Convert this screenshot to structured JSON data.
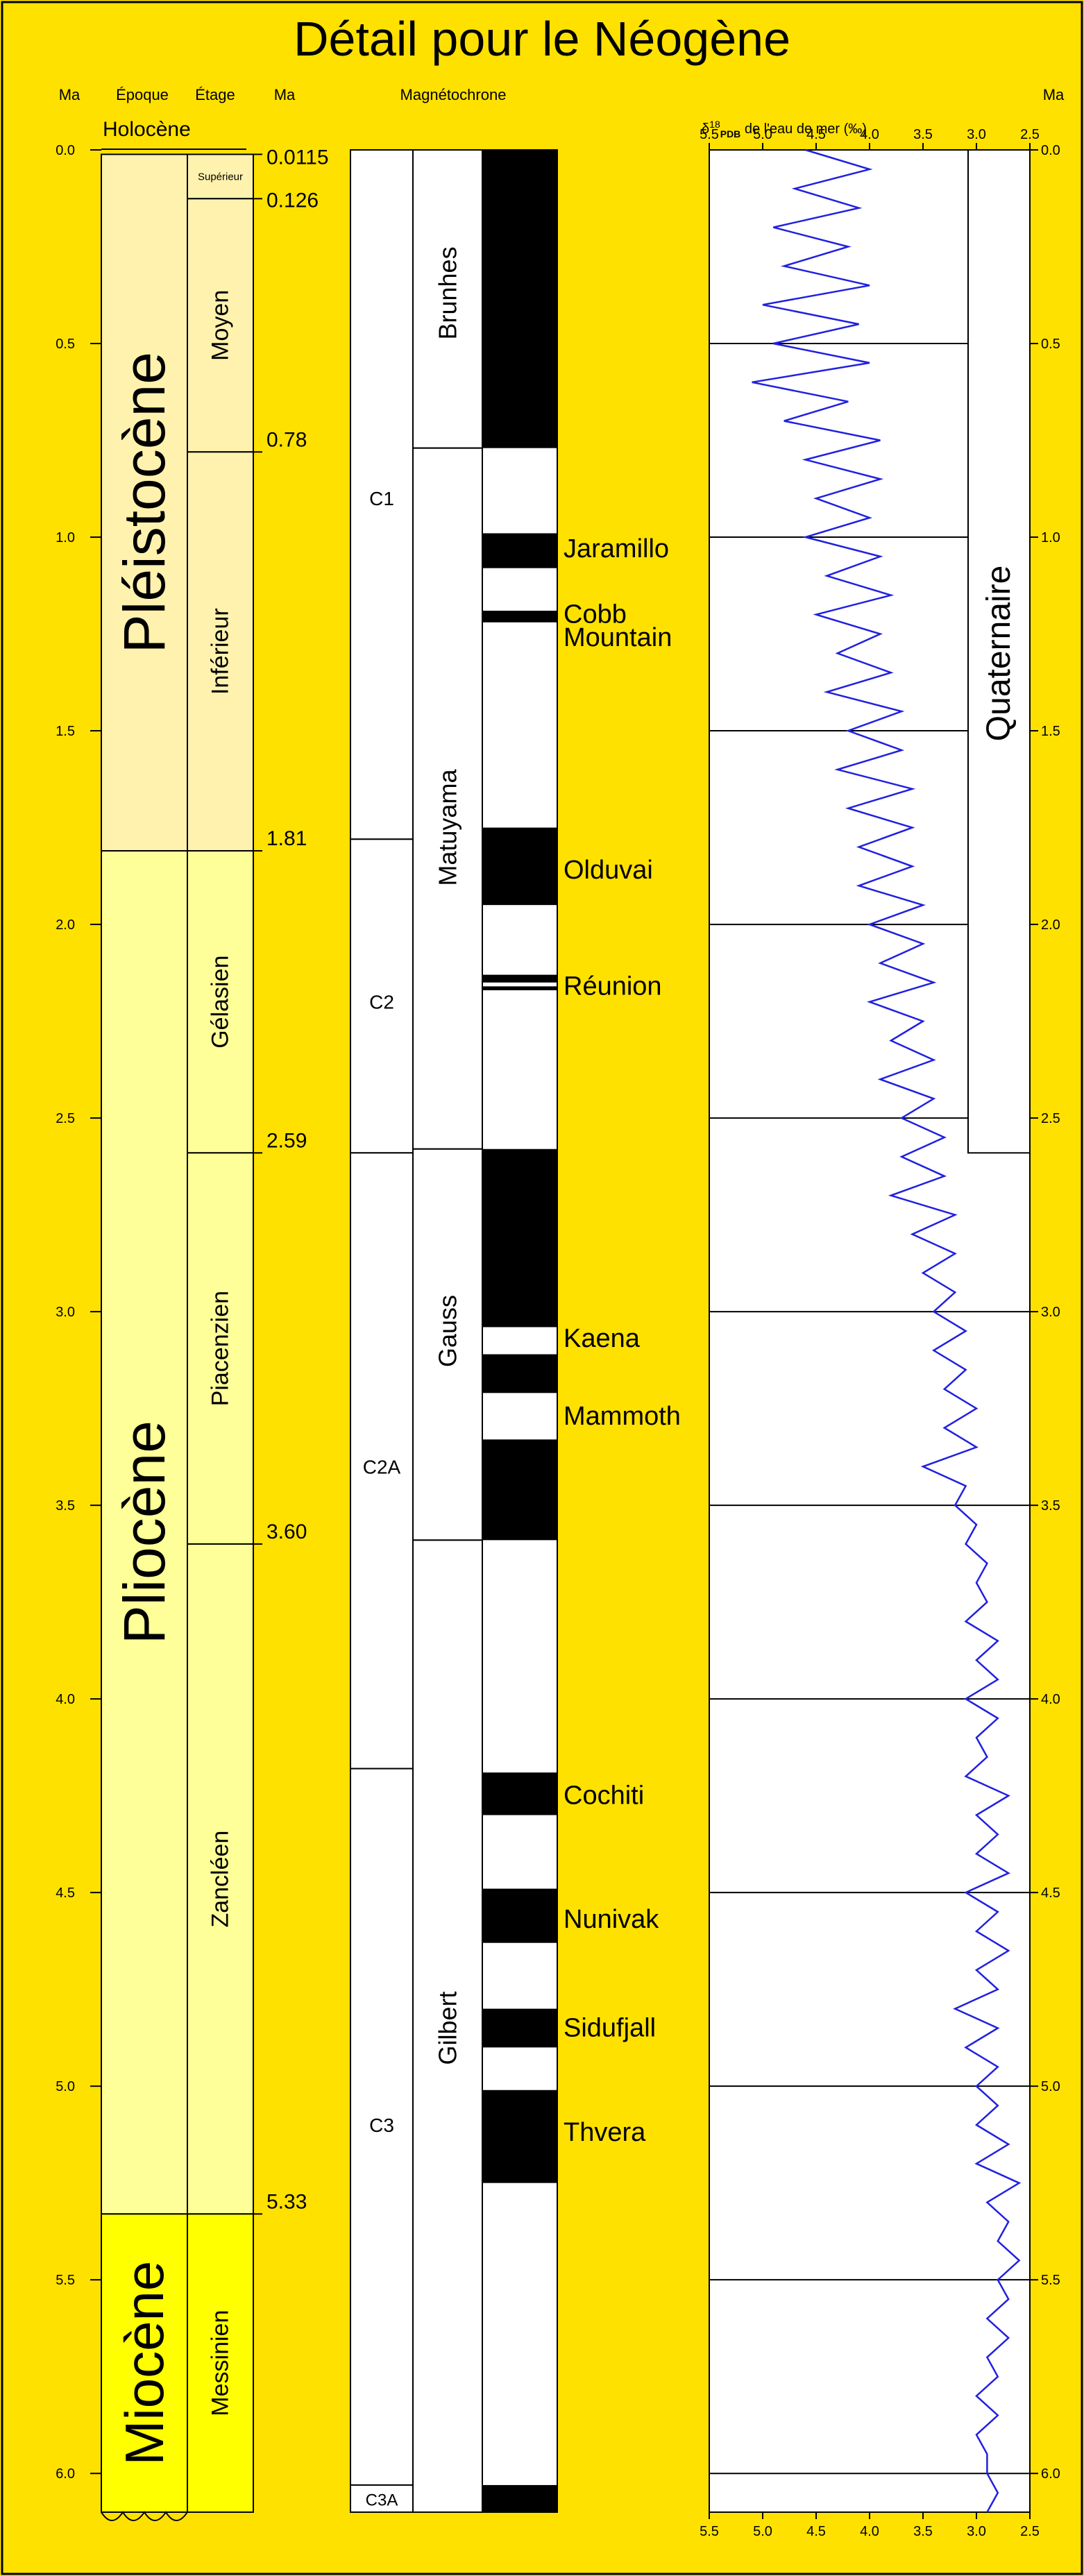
{
  "title": "Détail pour le Néogène",
  "colors": {
    "background": "#FFE100",
    "pleistocene": "#FFF2AE",
    "pliocene": "#FFFF99",
    "miocene": "#FFFF00",
    "normal_polarity": "#000000",
    "reverse_polarity": "#FFFFFF",
    "isotope_curve": "#2020E0"
  },
  "headers": {
    "ma_left": "Ma",
    "epoch": "Époque",
    "stage": "Étage",
    "ma_boundaries": "Ma",
    "magnetochron": "Magnétochrone",
    "isotope_prefix": "δ",
    "isotope_sup": "18",
    "isotope_sub": "PDB",
    "isotope_suffix": " de l'eau de mer (‰)",
    "ma_right": "Ma"
  },
  "time_axis": {
    "min": 0.0,
    "max": 6.1,
    "ticks": [
      "0.0",
      "0.5",
      "1.0",
      "1.5",
      "2.0",
      "2.5",
      "3.0",
      "3.5",
      "4.0",
      "4.5",
      "5.0",
      "5.5",
      "6.0"
    ]
  },
  "epochs": [
    {
      "name": "Holocène",
      "start": 0.0,
      "end": 0.0115,
      "color": "#FFF8D0"
    },
    {
      "name": "Pléistocène",
      "start": 0.0115,
      "end": 1.81,
      "color": "#FFF2AE"
    },
    {
      "name": "Pliocène",
      "start": 1.81,
      "end": 5.33,
      "color": "#FFFF99"
    },
    {
      "name": "Miocène",
      "start": 5.33,
      "end": 6.1,
      "color": "#FFFF00"
    }
  ],
  "stages": [
    {
      "name": "Supérieur",
      "start": 0.0115,
      "end": 0.126,
      "color": "#FFF2AE"
    },
    {
      "name": "Moyen",
      "start": 0.126,
      "end": 0.78,
      "color": "#FFF2AE"
    },
    {
      "name": "Inférieur",
      "start": 0.78,
      "end": 1.81,
      "color": "#FFF2AE"
    },
    {
      "name": "Gélasien",
      "start": 1.81,
      "end": 2.59,
      "color": "#FFFF99"
    },
    {
      "name": "Piacenzien",
      "start": 2.59,
      "end": 3.6,
      "color": "#FFFF99"
    },
    {
      "name": "Zancléen",
      "start": 3.6,
      "end": 5.33,
      "color": "#FFFF99"
    },
    {
      "name": "Messinien",
      "start": 5.33,
      "end": 6.1,
      "color": "#FFFF00"
    }
  ],
  "boundary_labels": [
    {
      "label": "0.0115",
      "age": 0.0115
    },
    {
      "label": "0.126",
      "age": 0.126
    },
    {
      "label": "0.78",
      "age": 0.78
    },
    {
      "label": "1.81",
      "age": 1.81
    },
    {
      "label": "2.59",
      "age": 2.59
    },
    {
      "label": "3.60",
      "age": 3.6
    },
    {
      "label": "5.33",
      "age": 5.33
    }
  ],
  "chrons": [
    {
      "name": "C1",
      "start": 0.0,
      "end": 1.78
    },
    {
      "name": "C2",
      "start": 1.78,
      "end": 2.59
    },
    {
      "name": "C2A",
      "start": 2.59,
      "end": 4.18
    },
    {
      "name": "C3",
      "start": 4.18,
      "end": 6.03
    },
    {
      "name": "C3A",
      "start": 6.03,
      "end": 6.1
    }
  ],
  "polarity_chrons": [
    {
      "name": "Brunhes",
      "start": 0.0,
      "end": 0.77
    },
    {
      "name": "Matuyama",
      "start": 0.77,
      "end": 2.58
    },
    {
      "name": "Gauss",
      "start": 2.58,
      "end": 3.59
    },
    {
      "name": "Gilbert",
      "start": 3.59,
      "end": 6.1
    }
  ],
  "normal_intervals": [
    [
      0.0,
      0.77
    ],
    [
      0.99,
      1.08
    ],
    [
      1.19,
      1.22
    ],
    [
      1.75,
      1.95
    ],
    [
      2.13,
      2.15
    ],
    [
      2.16,
      2.17
    ],
    [
      2.58,
      3.04
    ],
    [
      3.11,
      3.21
    ],
    [
      3.33,
      3.59
    ],
    [
      4.19,
      4.3
    ],
    [
      4.49,
      4.63
    ],
    [
      4.8,
      4.9
    ],
    [
      5.01,
      5.25
    ],
    [
      6.03,
      6.1
    ]
  ],
  "subchron_labels": [
    {
      "name": "Jaramillo",
      "age": 1.03
    },
    {
      "name": "Cobb",
      "age": 1.2
    },
    {
      "name": "Mountain",
      "age": 1.26
    },
    {
      "name": "Olduvai",
      "age": 1.86
    },
    {
      "name": "Réunion",
      "age": 2.16
    },
    {
      "name": "Kaena",
      "age": 3.07
    },
    {
      "name": "Mammoth",
      "age": 3.27
    },
    {
      "name": "Cochiti",
      "age": 4.25
    },
    {
      "name": "Nunivak",
      "age": 4.57
    },
    {
      "name": "Sidufjall",
      "age": 4.85
    },
    {
      "name": "Thvera",
      "age": 5.12
    }
  ],
  "isotope_axis": {
    "min": 2.5,
    "max": 5.5,
    "ticks": [
      "5.5",
      "5.0",
      "4.5",
      "4.0",
      "3.5",
      "3.0",
      "2.5"
    ]
  },
  "period_box": {
    "name": "Quaternaire",
    "start": 0.0,
    "end": 2.59
  },
  "chart_data": {
    "type": "line",
    "title": "",
    "xlabel": "δ18OPDB de l'eau de mer (‰)",
    "ylabel": "Ma",
    "xlim": [
      5.5,
      2.5
    ],
    "ylim": [
      0.0,
      6.1
    ],
    "series": [
      {
        "age": [
          0.0,
          0.05,
          0.1,
          0.15,
          0.2,
          0.25,
          0.3,
          0.35,
          0.4,
          0.45,
          0.5,
          0.55,
          0.6,
          0.65,
          0.7,
          0.75,
          0.8,
          0.85,
          0.9,
          0.95,
          1.0,
          1.05,
          1.1,
          1.15,
          1.2,
          1.25,
          1.3,
          1.35,
          1.4,
          1.45,
          1.5,
          1.55,
          1.6,
          1.65,
          1.7,
          1.75,
          1.8,
          1.85,
          1.9,
          1.95,
          2.0,
          2.05,
          2.1,
          2.15,
          2.2,
          2.25,
          2.3,
          2.35,
          2.4,
          2.45,
          2.5,
          2.55,
          2.6,
          2.65,
          2.7,
          2.75,
          2.8,
          2.85,
          2.9,
          2.95,
          3.0,
          3.05,
          3.1,
          3.15,
          3.2,
          3.25,
          3.3,
          3.35,
          3.4,
          3.45,
          3.5,
          3.55,
          3.6,
          3.65,
          3.7,
          3.75,
          3.8,
          3.85,
          3.9,
          3.95,
          4.0,
          4.05,
          4.1,
          4.15,
          4.2,
          4.25,
          4.3,
          4.35,
          4.4,
          4.45,
          4.5,
          4.55,
          4.6,
          4.65,
          4.7,
          4.75,
          4.8,
          4.85,
          4.9,
          4.95,
          5.0,
          5.05,
          5.1,
          5.15,
          5.2,
          5.25,
          5.3,
          5.35,
          5.4,
          5.45,
          5.5,
          5.55,
          5.6,
          5.65,
          5.7,
          5.75,
          5.8,
          5.85,
          5.9,
          5.95,
          6.0,
          6.05,
          6.1
        ],
        "d18o": [
          4.6,
          4.0,
          4.7,
          4.1,
          4.9,
          4.2,
          4.8,
          4.0,
          5.0,
          4.1,
          4.9,
          4.0,
          5.1,
          4.2,
          4.8,
          3.9,
          4.6,
          3.9,
          4.5,
          4.0,
          4.6,
          3.9,
          4.4,
          3.8,
          4.5,
          3.9,
          4.3,
          3.8,
          4.4,
          3.7,
          4.2,
          3.7,
          4.3,
          3.6,
          4.2,
          3.6,
          4.1,
          3.6,
          4.1,
          3.5,
          4.0,
          3.5,
          3.9,
          3.4,
          4.0,
          3.5,
          3.8,
          3.4,
          3.9,
          3.4,
          3.7,
          3.3,
          3.7,
          3.3,
          3.8,
          3.2,
          3.6,
          3.2,
          3.5,
          3.2,
          3.4,
          3.1,
          3.4,
          3.1,
          3.3,
          3.0,
          3.3,
          3.0,
          3.5,
          3.1,
          3.2,
          3.0,
          3.1,
          2.9,
          3.0,
          2.9,
          3.1,
          2.8,
          3.0,
          2.8,
          3.1,
          2.8,
          3.0,
          2.9,
          3.1,
          2.7,
          3.0,
          2.8,
          3.0,
          2.7,
          3.1,
          2.8,
          3.0,
          2.7,
          3.0,
          2.8,
          3.2,
          2.8,
          3.1,
          2.8,
          3.0,
          2.8,
          3.0,
          2.7,
          3.0,
          2.6,
          2.9,
          2.7,
          2.8,
          2.6,
          2.8,
          2.7,
          2.9,
          2.7,
          2.9,
          2.8,
          3.0,
          2.8,
          3.0,
          2.9,
          2.9,
          2.8,
          2.9
        ]
      }
    ]
  }
}
